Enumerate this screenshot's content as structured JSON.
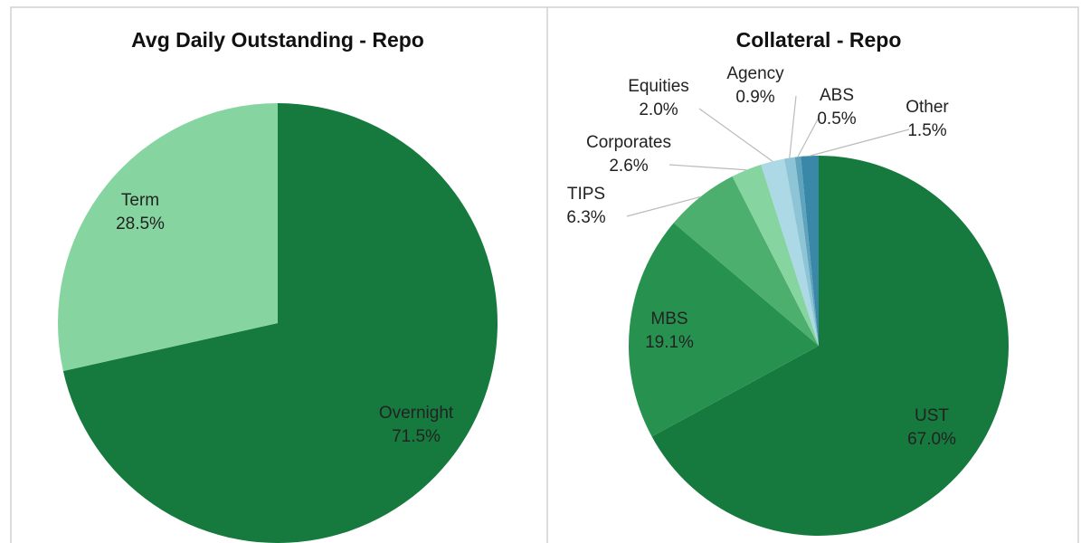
{
  "chart_data": [
    {
      "type": "pie",
      "title": "Avg Daily Outstanding - Repo",
      "categories": [
        "Overnight",
        "Term"
      ],
      "values": [
        71.5,
        28.5
      ],
      "value_labels": [
        "71.5%",
        "28.5%"
      ],
      "colors": [
        "#167a3e",
        "#86d5a0"
      ]
    },
    {
      "type": "pie",
      "title": "Collateral - Repo",
      "categories": [
        "UST",
        "MBS",
        "TIPS",
        "Corporates",
        "Equities",
        "Agency",
        "ABS",
        "Other"
      ],
      "values": [
        67.0,
        19.1,
        6.3,
        2.6,
        2.0,
        0.9,
        0.5,
        1.5
      ],
      "value_labels": [
        "67.0%",
        "19.1%",
        "6.3%",
        "2.6%",
        "2.0%",
        "0.9%",
        "0.5%",
        "1.5%"
      ],
      "colors": [
        "#167a3e",
        "#27924f",
        "#4caf6e",
        "#86d5a0",
        "#add8e6",
        "#8ec5d6",
        "#5fa3bd",
        "#3a88a8"
      ]
    }
  ]
}
